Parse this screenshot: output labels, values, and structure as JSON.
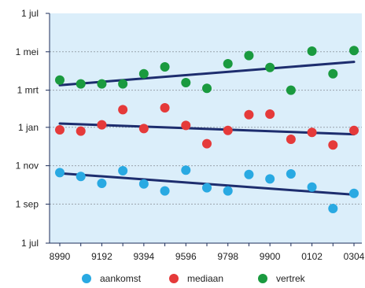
{
  "chart_data": {
    "type": "scatter",
    "title": "",
    "xlabel": "",
    "ylabel": "",
    "categories": [
      "8990",
      "9091",
      "9192",
      "9293",
      "9394",
      "9495",
      "9596",
      "9697",
      "9798",
      "9899",
      "9900",
      "0001",
      "0102",
      "0203",
      "0304"
    ],
    "x_tick_labels": [
      "8990",
      "9192",
      "9394",
      "9596",
      "9798",
      "9900",
      "0102",
      "0304"
    ],
    "y_tick_labels": [
      "1 jul",
      "1 sep",
      "1 nov",
      "1 jan",
      "1 mrt",
      "1 mei",
      "1 jul"
    ],
    "y_axis": {
      "unit": "days relative to 1 jul",
      "tick_values": [
        0,
        62,
        123,
        184,
        243,
        304,
        365
      ],
      "ylim": [
        0,
        365
      ]
    },
    "grid": {
      "horizontal": true,
      "vertical": false
    },
    "legend_position": "bottom",
    "background_color": "#dbeefa",
    "series": [
      {
        "name": "aankomst",
        "color": "#29a9e2",
        "values": [
          112,
          106,
          95,
          115,
          94,
          83,
          116,
          88,
          83,
          109,
          102,
          110,
          89,
          55,
          79
        ],
        "trend": [
          111,
          77
        ]
      },
      {
        "name": "mediaan",
        "color": "#e53a3a",
        "values": [
          180,
          178,
          188,
          212,
          182,
          215,
          187,
          158,
          179,
          204,
          205,
          165,
          176,
          156,
          179
        ],
        "trend": [
          190,
          173
        ]
      },
      {
        "name": "vertrek",
        "color": "#1a9a3f",
        "values": [
          259,
          253,
          253,
          253,
          269,
          280,
          255,
          246,
          285,
          298,
          279,
          243,
          305,
          269,
          306
        ],
        "trend": [
          251,
          288
        ]
      }
    ]
  },
  "legend": [
    {
      "label": "aankomst",
      "color": "#29a9e2"
    },
    {
      "label": "mediaan",
      "color": "#e53a3a"
    },
    {
      "label": "vertrek",
      "color": "#1a9a3f"
    }
  ]
}
